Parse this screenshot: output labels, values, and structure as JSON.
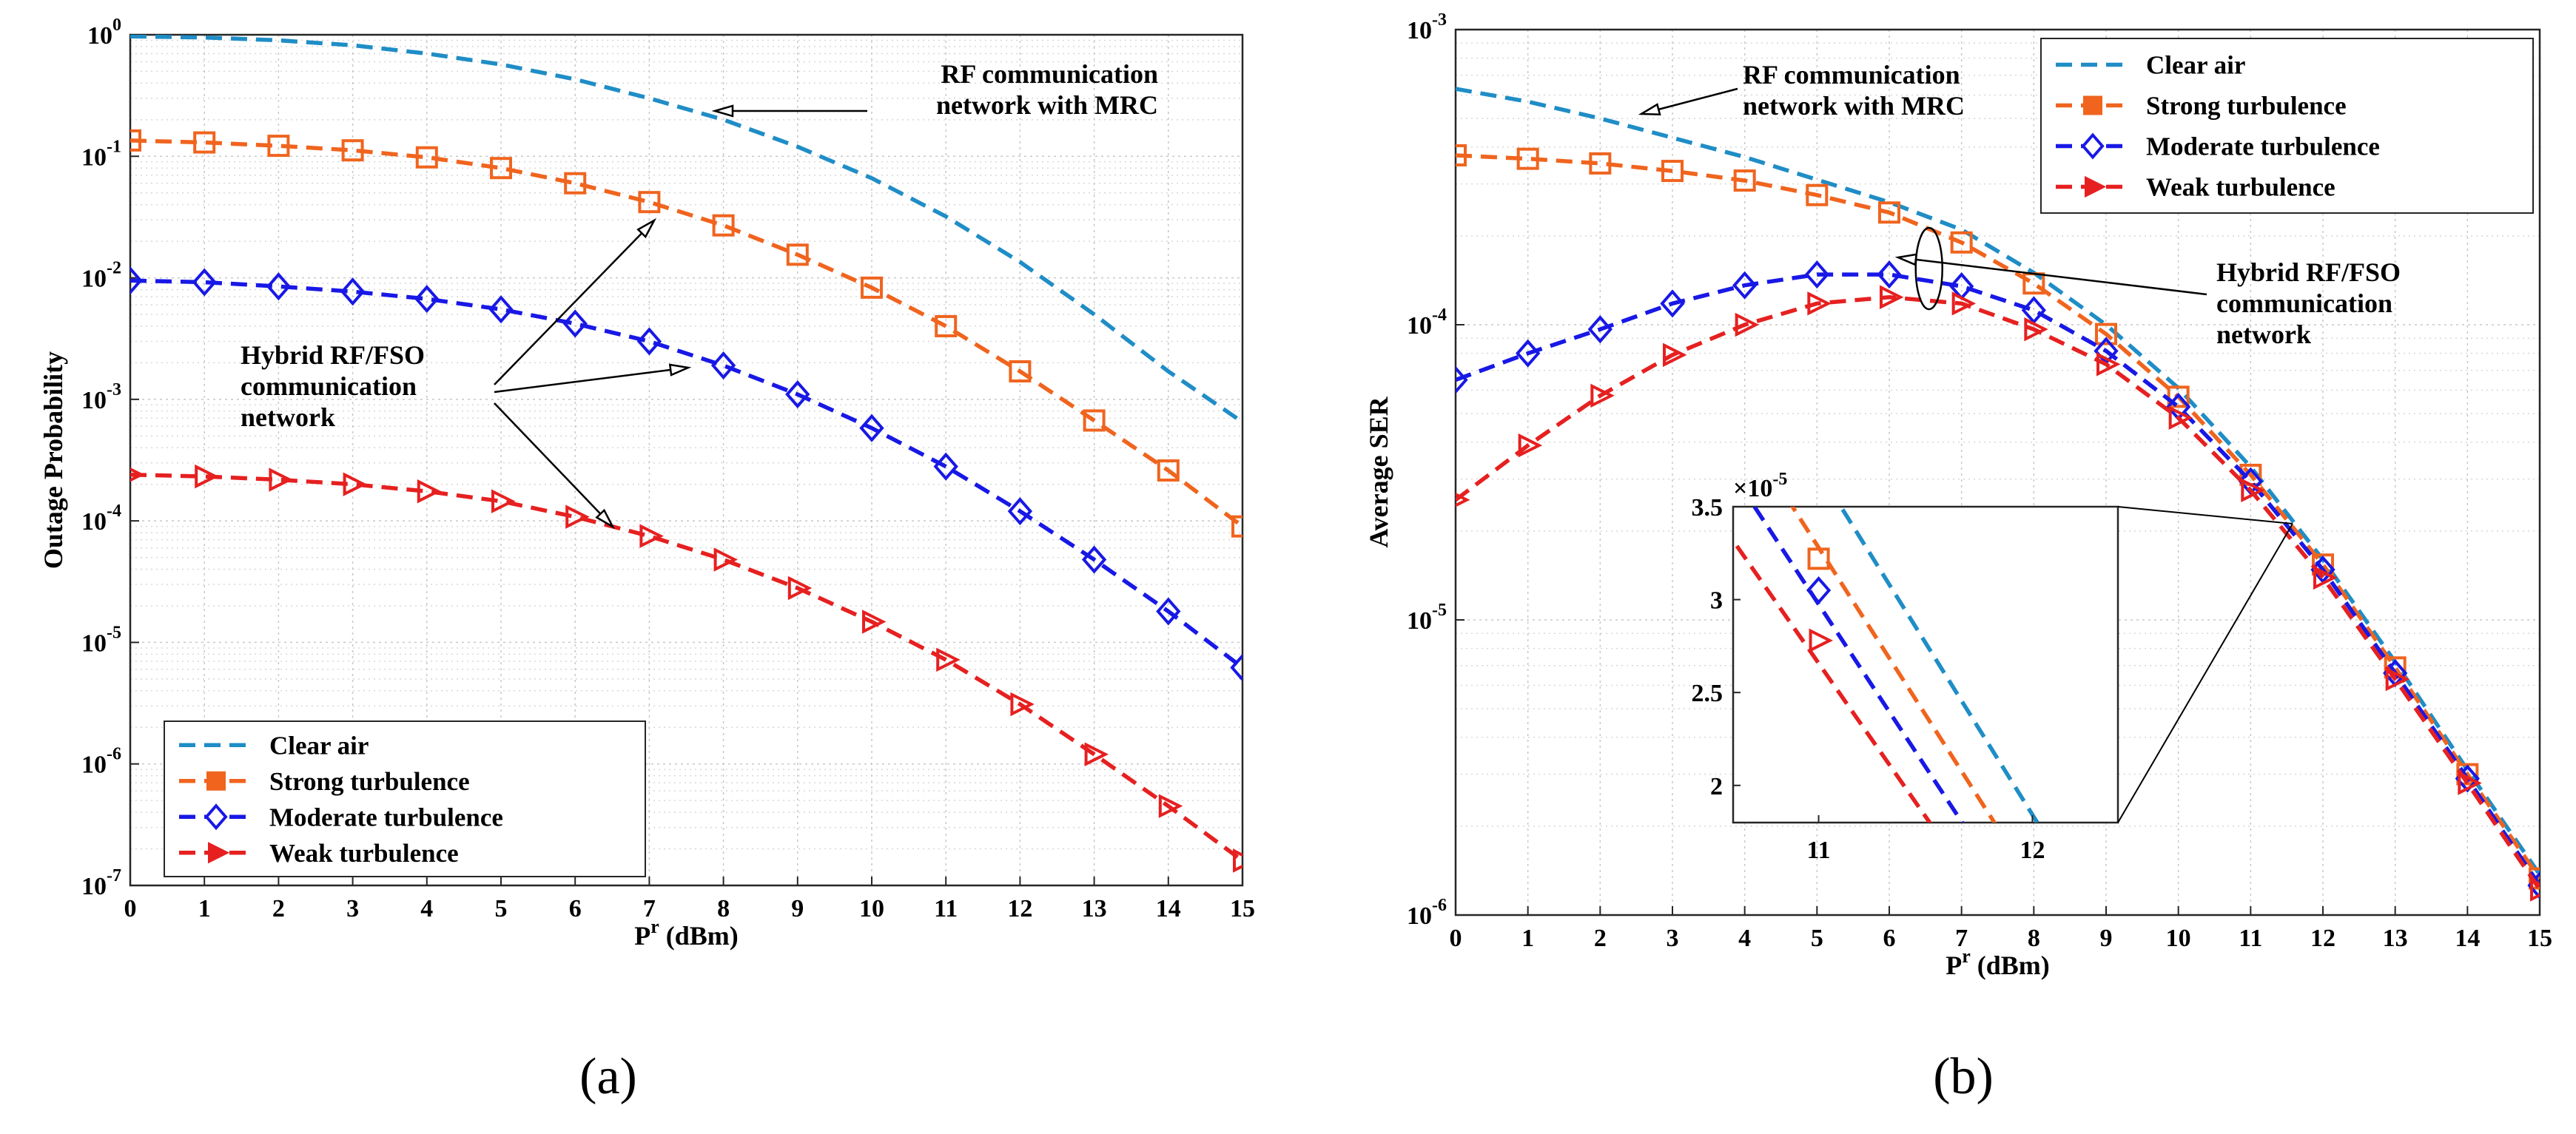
{
  "chart_data": [
    {
      "type": "line",
      "panel": "a",
      "caption": "(a)",
      "xlabel": "P",
      "xlabel_sup": "r",
      "xlabel_unit": " (dBm)",
      "ylabel": "Outage Probability",
      "yscale": "log",
      "xlim": [
        0,
        15
      ],
      "ylim_exp": [
        -7,
        0
      ],
      "x_ticks": [
        "0",
        "1",
        "2",
        "3",
        "4",
        "5",
        "6",
        "7",
        "8",
        "9",
        "10",
        "11",
        "12",
        "13",
        "14",
        "15"
      ],
      "y_ticks": [
        {
          "exp": 0,
          "label": "0"
        },
        {
          "exp": -1,
          "label": "-1"
        },
        {
          "exp": -2,
          "label": "-2"
        },
        {
          "exp": -3,
          "label": "-3"
        },
        {
          "exp": -4,
          "label": "-4"
        },
        {
          "exp": -5,
          "label": "-5"
        },
        {
          "exp": -6,
          "label": "-6"
        },
        {
          "exp": -7,
          "label": "-7"
        }
      ],
      "y_tick_base": "10",
      "grid": true,
      "legend_position": "bottom-left",
      "x": [
        0,
        1,
        2,
        3,
        4,
        5,
        6,
        7,
        8,
        9,
        10,
        11,
        12,
        13,
        14,
        15
      ],
      "series": [
        {
          "name": "Clear air",
          "color": "#1f8dc6",
          "marker": "none",
          "values": [
            0.97,
            0.95,
            0.9,
            0.82,
            0.7,
            0.57,
            0.43,
            0.3,
            0.2,
            0.12,
            0.066,
            0.032,
            0.0135,
            0.005,
            0.0017,
            0.00065
          ]
        },
        {
          "name": "Strong turbulence",
          "color": "#f0641e",
          "marker": "square",
          "values": [
            0.135,
            0.13,
            0.122,
            0.112,
            0.098,
            0.08,
            0.06,
            0.042,
            0.027,
            0.0155,
            0.0083,
            0.004,
            0.0017,
            0.00067,
            0.00026,
            9e-05
          ]
        },
        {
          "name": "Moderate turbulence",
          "color": "#1818e6",
          "marker": "diamond",
          "values": [
            0.0095,
            0.0092,
            0.0085,
            0.0077,
            0.0067,
            0.0055,
            0.0042,
            0.003,
            0.0019,
            0.0011,
            0.00058,
            0.00028,
            0.00012,
            4.8e-05,
            1.8e-05,
            6.2e-06
          ]
        },
        {
          "name": "Weak turbulence",
          "color": "#e62020",
          "marker": "triangle-right",
          "values": [
            0.00024,
            0.000232,
            0.000218,
            0.0002,
            0.000175,
            0.000145,
            0.000108,
            7.5e-05,
            4.8e-05,
            2.8e-05,
            1.48e-05,
            7.2e-06,
            3.1e-06,
            1.2e-06,
            4.5e-07,
            1.6e-07
          ]
        }
      ],
      "annotations": [
        {
          "lines": [
            "RF communication",
            "network with MRC"
          ]
        },
        {
          "lines": [
            "Hybrid RF/FSO",
            "communication",
            "network"
          ]
        }
      ]
    },
    {
      "type": "line",
      "panel": "b",
      "caption": "(b)",
      "xlabel": "P",
      "xlabel_sup": "r",
      "xlabel_unit": " (dBm)",
      "ylabel": "Average SER",
      "yscale": "log",
      "xlim": [
        0,
        15
      ],
      "ylim_exp": [
        -6,
        -3
      ],
      "x_ticks": [
        "0",
        "1",
        "2",
        "3",
        "4",
        "5",
        "6",
        "7",
        "8",
        "9",
        "10",
        "11",
        "12",
        "13",
        "14",
        "15"
      ],
      "y_ticks": [
        {
          "exp": -3,
          "label": "-3"
        },
        {
          "exp": -4,
          "label": "-4"
        },
        {
          "exp": -5,
          "label": "-5"
        },
        {
          "exp": -6,
          "label": "-6"
        }
      ],
      "y_tick_base": "10",
      "grid": true,
      "legend_position": "top-right",
      "x": [
        0,
        1,
        2,
        3,
        4,
        5,
        6,
        7,
        8,
        9,
        10,
        11,
        12,
        13,
        14,
        15
      ],
      "series": [
        {
          "name": "Clear air",
          "color": "#1f8dc6",
          "marker": "none",
          "values": [
            0.00063,
            0.00057,
            0.0005,
            0.00043,
            0.00037,
            0.00031,
            0.00026,
            0.00021,
            0.00015,
            0.0001,
            6.1e-05,
            3.3e-05,
            1.6e-05,
            7.2e-06,
            3.1e-06,
            1.37e-06
          ]
        },
        {
          "name": "Strong turbulence",
          "color": "#f0641e",
          "marker": "square",
          "values": [
            0.000375,
            0.000365,
            0.000352,
            0.000332,
            0.000308,
            0.000275,
            0.00024,
            0.00019,
            0.000138,
            9.3e-05,
            5.7e-05,
            3.1e-05,
            1.54e-05,
            6.9e-06,
            3e-06,
            1.33e-06
          ]
        },
        {
          "name": "Moderate turbulence",
          "color": "#1818e6",
          "marker": "diamond",
          "values": [
            6.5e-05,
            8e-05,
            9.65e-05,
            0.000118,
            0.000136,
            0.000148,
            0.000148,
            0.000135,
            0.000112,
            8.15e-05,
            5.27e-05,
            2.95e-05,
            1.48e-05,
            6.6e-06,
            2.9e-06,
            1.26e-06
          ]
        },
        {
          "name": "Weak turbulence",
          "color": "#e62020",
          "marker": "triangle-right",
          "values": [
            2.55e-05,
            3.9e-05,
            5.75e-05,
            7.9e-05,
            0.0001,
            0.000118,
            0.000124,
            0.000118,
            9.65e-05,
            7.35e-05,
            4.84e-05,
            2.75e-05,
            1.39e-05,
            6.3e-06,
            2.8e-06,
            1.22e-06
          ]
        }
      ],
      "annotations": [
        {
          "lines": [
            "RF communication",
            "network with MRC"
          ]
        },
        {
          "lines": [
            "Hybrid RF/FSO",
            "communication",
            "network"
          ]
        }
      ],
      "inset": {
        "xlim": [
          10.6,
          12.4
        ],
        "ylim": [
          1.8,
          3.5
        ],
        "x_ticks": [
          "11",
          "12"
        ],
        "y_ticks": [
          "3.5",
          "3",
          "2.5",
          "2"
        ],
        "y_multiplier": "×10",
        "y_multiplier_exp": "-5",
        "series": [
          {
            "name": "Clear air",
            "x": [
              11.05,
              12.05
            ],
            "values": [
              3.6,
              1.75
            ]
          },
          {
            "name": "Strong turbulence",
            "x": [
              10.85,
              11.85
            ],
            "values": [
              3.55,
              1.75
            ]
          },
          {
            "name": "Moderate turbulence",
            "x": [
              10.7,
              11.7
            ],
            "values": [
              3.5,
              1.75
            ]
          },
          {
            "name": "Weak turbulence",
            "x": [
              10.55,
              11.55
            ],
            "values": [
              3.4,
              1.75
            ]
          }
        ],
        "markers": [
          {
            "series": "Strong turbulence",
            "x": 11,
            "y": 3.22
          },
          {
            "series": "Moderate turbulence",
            "x": 11,
            "y": 3.05
          },
          {
            "series": "Weak turbulence",
            "x": 11,
            "y": 2.78
          }
        ]
      }
    }
  ]
}
